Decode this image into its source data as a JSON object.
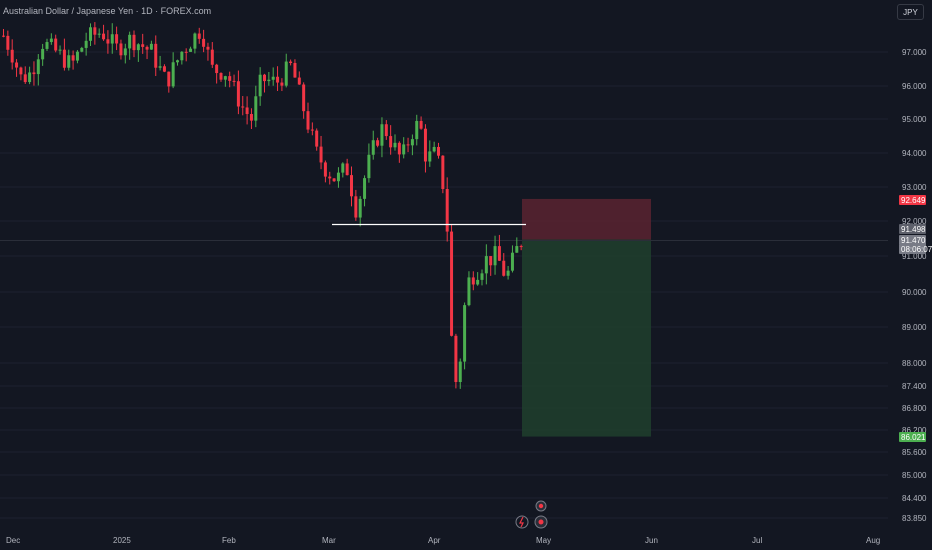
{
  "header": {
    "title": "Australian Dollar / Japanese Yen · 1D · FOREX.com",
    "currency": "JPY"
  },
  "colors": {
    "background": "#131722",
    "up": "#26a69a",
    "up_bright": "#4caf50",
    "down": "#f23645",
    "stop_zone": "#5b2330",
    "target_zone": "#1f3d2c",
    "line": "#ffffff"
  },
  "chart_data": {
    "type": "candlestick",
    "y_ticks": [
      "97.000",
      "96.000",
      "95.000",
      "94.000",
      "93.000",
      "92.000",
      "91.000",
      "90.000",
      "89.000",
      "88.000",
      "87.400",
      "86.800",
      "86.200",
      "85.600",
      "85.000",
      "84.400",
      "83.850"
    ],
    "x_ticks": [
      "Dec",
      "2025",
      "Feb",
      "Mar",
      "Apr",
      "May",
      "Jun",
      "Jul",
      "Aug"
    ],
    "price_tags": [
      {
        "label": "92.649",
        "value": 92.649,
        "color": "#f23645"
      },
      {
        "label": "91.498",
        "value": 91.498,
        "color": "#5d606b"
      },
      {
        "label": "91.470",
        "value": 91.47,
        "color": "#787b86"
      },
      {
        "label": "08:06:07",
        "value": 91.47,
        "color": "#787b86"
      },
      {
        "label": "86.021",
        "value": 86.021,
        "color": "#4caf50"
      }
    ],
    "position": {
      "entry": 91.47,
      "stop": 92.649,
      "target": 86.021
    },
    "support_line": 91.9
  }
}
